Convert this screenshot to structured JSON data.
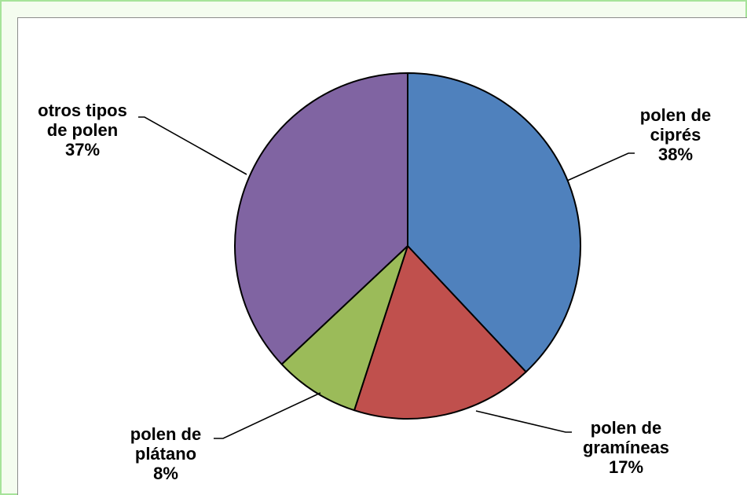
{
  "chart_data": {
    "type": "pie",
    "title": "",
    "slices": [
      {
        "lines": [
          "polen de",
          "ciprés"
        ],
        "pct_label": "38%",
        "value": 38,
        "color": "#4f81bd"
      },
      {
        "lines": [
          "polen de",
          "gramíneas"
        ],
        "pct_label": "17%",
        "value": 17,
        "color": "#c0504d"
      },
      {
        "lines": [
          "polen de",
          "plátano"
        ],
        "pct_label": "8%",
        "value": 8,
        "color": "#9bbb59"
      },
      {
        "lines": [
          "otros tipos",
          "de polen"
        ],
        "pct_label": "37%",
        "value": 37,
        "color": "#8064a2"
      }
    ],
    "start_angle_deg": 0,
    "direction": "clockwise",
    "legend": "none"
  }
}
